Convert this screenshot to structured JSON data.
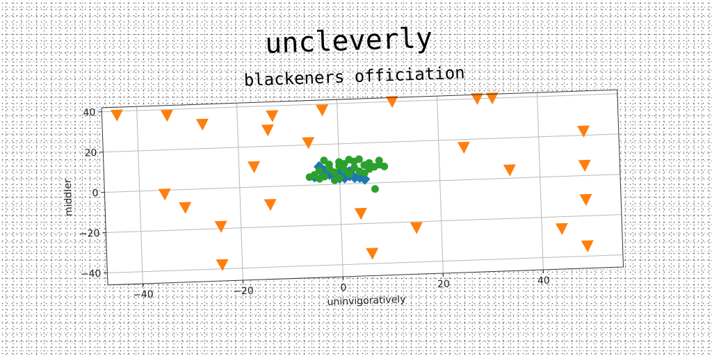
{
  "chart_data": {
    "type": "scatter",
    "title": "uncleverly",
    "subtitle": "blackeners officiation",
    "xlabel": "uninvigoratively",
    "ylabel": "middler",
    "xlim": [
      -47,
      56
    ],
    "ylim": [
      -46,
      42
    ],
    "xticks": [
      -40,
      -20,
      0,
      20,
      40
    ],
    "yticks": [
      -40,
      -20,
      0,
      20,
      40
    ],
    "grid": true,
    "series": [
      {
        "marker": "triangle-down",
        "color": "#ff7f0e",
        "points": [
          [
            -44,
            38
          ],
          [
            -34,
            37
          ],
          [
            -27,
            32
          ],
          [
            -13,
            35
          ],
          [
            -14,
            28
          ],
          [
            -3,
            37
          ],
          [
            -6,
            21
          ],
          [
            11,
            40
          ],
          [
            28,
            40
          ],
          [
            31,
            40
          ],
          [
            25,
            16
          ],
          [
            49,
            22
          ],
          [
            -17,
            10
          ],
          [
            -35,
            -2
          ],
          [
            -31,
            -9
          ],
          [
            -14,
            -9
          ],
          [
            -24,
            -19
          ],
          [
            -24,
            -38
          ],
          [
            4,
            -15
          ],
          [
            15,
            -23
          ],
          [
            6,
            -35
          ],
          [
            34,
            4
          ],
          [
            49,
            5
          ],
          [
            49,
            -12
          ],
          [
            44,
            -26
          ],
          [
            49,
            -35
          ]
        ]
      },
      {
        "marker": "diamond",
        "color": "#1f77b4",
        "points": [
          [
            -4,
            9
          ],
          [
            -3,
            7
          ],
          [
            -2,
            5
          ],
          [
            0,
            6
          ],
          [
            1,
            5
          ],
          [
            2,
            4
          ],
          [
            3,
            3
          ],
          [
            4,
            3
          ],
          [
            5,
            2
          ],
          [
            -1,
            4
          ],
          [
            0,
            3
          ],
          [
            -5,
            4
          ],
          [
            -3,
            5
          ],
          [
            2,
            6
          ],
          [
            1,
            3
          ]
        ]
      },
      {
        "marker": "circle",
        "color": "#2ca02c",
        "points": [
          [
            -5,
            5
          ],
          [
            -4,
            7
          ],
          [
            -3,
            4
          ],
          [
            -2,
            8
          ],
          [
            -1,
            6
          ],
          [
            0,
            9
          ],
          [
            1,
            7
          ],
          [
            2,
            5
          ],
          [
            3,
            8
          ],
          [
            4,
            6
          ],
          [
            5,
            9
          ],
          [
            6,
            7
          ],
          [
            7,
            8
          ],
          [
            8,
            11
          ],
          [
            9,
            8
          ],
          [
            -6,
            4
          ],
          [
            -2,
            10
          ],
          [
            0,
            3
          ],
          [
            3,
            11
          ],
          [
            5,
            5
          ],
          [
            -4,
            3
          ],
          [
            1,
            10
          ],
          [
            4,
            12
          ],
          [
            7,
            -3
          ],
          [
            -1,
            2
          ],
          [
            2,
            12
          ],
          [
            6,
            10
          ],
          [
            -3,
            12
          ],
          [
            0,
            11
          ],
          [
            8,
            9
          ]
        ]
      }
    ]
  }
}
